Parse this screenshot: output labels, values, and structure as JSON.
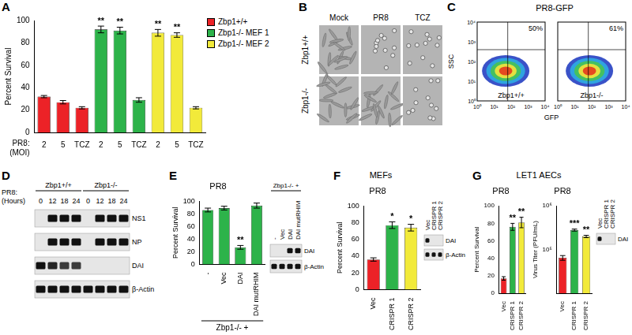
{
  "chart_data": [
    {
      "panel": "A",
      "type": "bar",
      "categories": [
        "2",
        "5",
        "TCZ",
        "2",
        "5",
        "TCZ",
        "2",
        "5",
        "TCZ"
      ],
      "x_label": [
        "PR8:",
        "(MOI)"
      ],
      "y_label": "Percent Survival",
      "ylim": [
        0,
        100
      ],
      "yticks": [
        0,
        20,
        40,
        60,
        80,
        100
      ],
      "legend": "right",
      "series": [
        {
          "name": "Zbp1+/+",
          "color": "#ec2227",
          "values": [
            32,
            27,
            22,
            null,
            null,
            null,
            null,
            null,
            null
          ],
          "errors": [
            1,
            1.5,
            1,
            null,
            null,
            null,
            null,
            null,
            null
          ],
          "significance": [
            null,
            null,
            null,
            null,
            null,
            null,
            null,
            null,
            null
          ]
        },
        {
          "name": "Zbp1-/- MEF 1",
          "color": "#2db34a",
          "values": [
            null,
            null,
            null,
            92,
            91,
            29,
            null,
            null,
            null
          ],
          "errors": [
            null,
            null,
            null,
            3,
            3,
            2,
            null,
            null,
            null
          ],
          "significance": [
            null,
            null,
            null,
            "**",
            "**",
            null,
            null,
            null,
            null
          ]
        },
        {
          "name": "Zbp1-/- MEF 2",
          "color": "#f2ea3a",
          "values": [
            null,
            null,
            null,
            null,
            null,
            null,
            89,
            87,
            22
          ],
          "errors": [
            null,
            null,
            null,
            null,
            null,
            null,
            3,
            2,
            1
          ],
          "significance": [
            null,
            null,
            null,
            null,
            null,
            null,
            "**",
            "**",
            null
          ]
        }
      ]
    },
    {
      "panel": "E",
      "type": "bar",
      "title": "PR8",
      "categories": [
        "-",
        "Vec",
        "DAI",
        "DAI mutRHIM"
      ],
      "group_label": "Zbp1-/- +",
      "y_label": "Percent Survival",
      "ylim": [
        0,
        100
      ],
      "yticks": [
        0,
        20,
        40,
        60,
        80,
        100
      ],
      "series": [
        {
          "color": "#2db34a",
          "values": [
            86,
            89,
            27,
            93
          ],
          "errors": [
            3,
            3,
            3,
            4
          ],
          "significance": [
            null,
            null,
            "**",
            null
          ]
        }
      ],
      "blot": {
        "header": "Zbp1-/- +",
        "lanes": [
          "-",
          "Vec",
          "DAI",
          "DAI mutRHIM"
        ],
        "rows": [
          "DAI",
          "β-Actin"
        ],
        "bands": [
          [
            0,
            0,
            1,
            1
          ],
          [
            1,
            1,
            1,
            1
          ]
        ]
      }
    },
    {
      "panel": "F",
      "type": "bar",
      "subtitle": "MEFs",
      "title": "PR8",
      "categories": [
        "Vec",
        "CRISPR 1",
        "CRISPR 2"
      ],
      "y_label": "Percent Survival",
      "ylim": [
        0,
        100
      ],
      "yticks": [
        0,
        20,
        40,
        60,
        80,
        100
      ],
      "series": [
        {
          "colors": [
            "#ec2227",
            "#2db34a",
            "#f2ea3a"
          ],
          "values": [
            36,
            77,
            74
          ],
          "errors": [
            2,
            4,
            4
          ],
          "significance": [
            null,
            "*",
            "*"
          ]
        }
      ],
      "blot": {
        "lanes": [
          "Vec",
          "CRISPR 1",
          "CRISPR 2"
        ],
        "rows": [
          "DAI",
          "β-Actin"
        ],
        "bands": [
          [
            1,
            0,
            0
          ],
          [
            1,
            1,
            1
          ]
        ]
      }
    },
    {
      "panel": "G",
      "type": "bar",
      "subtitle": "LET1 AECs",
      "title": "PR8",
      "categories": [
        "Vec",
        "CRISPR 1",
        "CRISPR 2"
      ],
      "y_label": "Percent Survival",
      "ylim": [
        0,
        100
      ],
      "yticks": [
        0,
        20,
        40,
        60,
        80,
        100
      ],
      "series": [
        {
          "colors": [
            "#ec2227",
            "#2db34a",
            "#f2ea3a"
          ],
          "values": [
            17,
            76,
            81
          ],
          "errors": [
            2,
            4,
            6
          ],
          "significance": [
            null,
            "**",
            "**"
          ]
        }
      ]
    },
    {
      "type": "bar",
      "title": "PR8",
      "log": "y",
      "categories": [
        "Vec",
        "CRISPR 1",
        "CRISPR 2"
      ],
      "y_label": "Virus Titer (PFU/mL)",
      "ylim": [
        10000,
        1000000
      ],
      "yticks": [
        {
          "value": 100000,
          "label": "10⁵"
        },
        {
          "value": 1000000,
          "label": "10⁶"
        }
      ],
      "series": [
        {
          "colors": [
            "#ec2227",
            "#2db34a",
            "#f2ea3a"
          ],
          "values": [
            65000,
            280000,
            200000
          ],
          "errors": [
            8000,
            15000,
            12000
          ],
          "significance": [
            null,
            "***",
            "**"
          ]
        }
      ],
      "blot": {
        "lanes": [
          "Vec",
          "CRISPR 1",
          "CRISPR 2"
        ],
        "rows": [
          "DAI"
        ],
        "bands": [
          [
            1,
            0,
            0
          ]
        ]
      }
    }
  ],
  "figures": [
    {
      "panel": "B",
      "type": "micrographs",
      "columns": [
        "Mock",
        "PR8",
        "TCZ"
      ],
      "rows": [
        "Zbp1+/+",
        "Zbp1-/-"
      ]
    },
    {
      "panel": "C",
      "type": "flow_cytometry",
      "title": "PR8-GFP",
      "x_label": "GFP",
      "y_label": "SSC",
      "axis_ticks": [
        "10⁰",
        "10¹",
        "10²",
        "10³",
        "10⁴"
      ],
      "plots": [
        {
          "label": "Zbp1+/+",
          "gate_label": "50%"
        },
        {
          "label": "Zbp1-/-",
          "gate_label": "61%"
        }
      ]
    },
    {
      "panel": "D",
      "type": "western_blot",
      "row_header": [
        "PR8:",
        "(Hours)"
      ],
      "groups": [
        {
          "label": "Zbp1+/+",
          "lanes": [
            "0",
            "12",
            "18",
            "24"
          ]
        },
        {
          "label": "Zbp1-/-",
          "lanes": [
            "0",
            "12",
            "18",
            "24"
          ]
        }
      ],
      "rows": [
        "NS1",
        "NP",
        "DAI",
        "β-Actin"
      ],
      "bands": [
        [
          0,
          1,
          1,
          1,
          0,
          1,
          1,
          1
        ],
        [
          0,
          1,
          1,
          1,
          0,
          1,
          1,
          1
        ],
        [
          1,
          0.9,
          0.8,
          0.8,
          0,
          0,
          0,
          0
        ],
        [
          1,
          1,
          1,
          1,
          1,
          1,
          1,
          1
        ]
      ]
    }
  ]
}
